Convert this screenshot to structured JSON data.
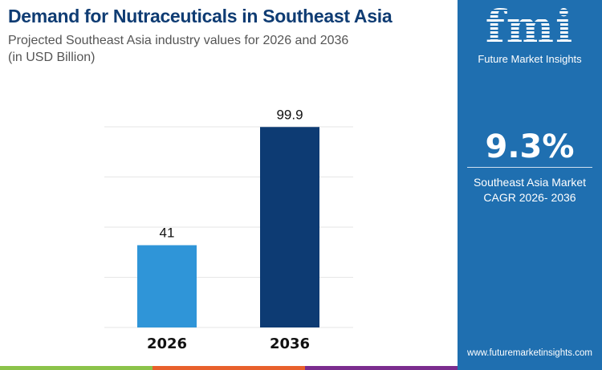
{
  "header": {
    "title": "Demand for Nutraceuticals in Southeast Asia",
    "subtitle_line1": "Projected Southeast Asia industry values for 2026 and 2036",
    "subtitle_line2": "(in USD Billion)"
  },
  "chart_data": {
    "type": "bar",
    "categories": [
      "2026",
      "2036"
    ],
    "values": [
      41,
      99.9
    ],
    "data_labels": [
      "41",
      "99.9"
    ],
    "ylim": [
      0,
      100
    ],
    "grid": true,
    "colors": [
      "#2f95d8",
      "#0d3b73"
    ]
  },
  "panel": {
    "logo_text": "fmi",
    "brand": "Future Market Insights",
    "cagr": "9.3%",
    "cagr_label_line1": "Southeast Asia Market",
    "cagr_label_line2": "CAGR 2026- 2036",
    "url": "www.futuremarketinsights.com",
    "bg": "#1f6fb0"
  },
  "strip_colors": [
    "#8bc34a",
    "#e8602c",
    "#7b2d8e"
  ]
}
